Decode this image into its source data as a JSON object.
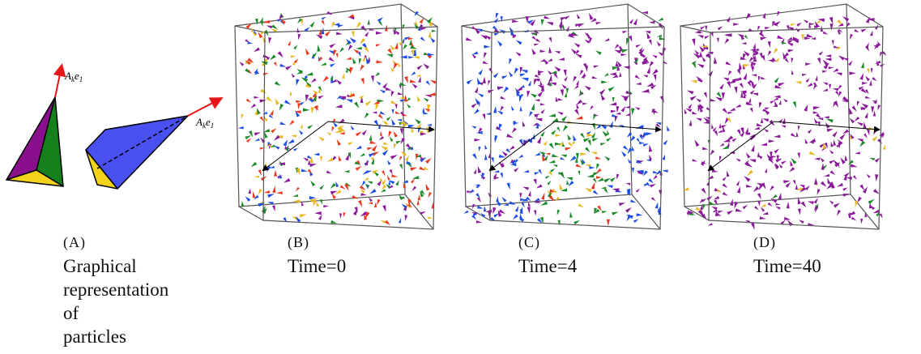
{
  "panel_a": {
    "arrow_labels": [
      [
        "A",
        "k",
        "e",
        "1"
      ],
      [
        "A",
        "k",
        "e",
        "1"
      ]
    ],
    "caption": {
      "tag": "(A)",
      "text": "Graphical representation of particles"
    }
  },
  "panels": [
    {
      "caption": {
        "tag": "(B)",
        "text": "Time=0"
      }
    },
    {
      "caption": {
        "tag": "(C)",
        "text": "Time=4"
      }
    },
    {
      "caption": {
        "tag": "(D)",
        "text": "Time=40"
      }
    }
  ]
}
